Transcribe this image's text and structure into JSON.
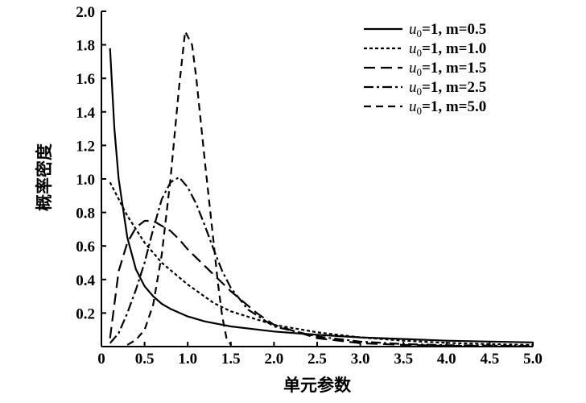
{
  "chart_data": {
    "type": "line",
    "xlabel": "单元参数",
    "ylabel": "概率密度",
    "xlim": [
      0,
      5.0
    ],
    "ylim": [
      0,
      2.0
    ],
    "x_ticks": [
      "0",
      "0.5",
      "1.0",
      "1.5",
      "2.0",
      "2.5",
      "3.0",
      "3.5",
      "4.0",
      "4.5",
      "5.0"
    ],
    "y_ticks": [
      "0.2",
      "0.4",
      "0.6",
      "0.8",
      "1.0",
      "1.2",
      "1.4",
      "1.6",
      "1.8",
      "2.0"
    ],
    "grid": false,
    "legend_position": "top-right",
    "series": [
      {
        "name_var": "u",
        "name_sub": "0",
        "name_rest": "=1, m=0.5",
        "dash": "solid",
        "points": [
          [
            0.1,
            1.78
          ],
          [
            0.15,
            1.3
          ],
          [
            0.2,
            1.0
          ],
          [
            0.3,
            0.65
          ],
          [
            0.4,
            0.46
          ],
          [
            0.5,
            0.36
          ],
          [
            0.6,
            0.3
          ],
          [
            0.7,
            0.255
          ],
          [
            0.8,
            0.225
          ],
          [
            1.0,
            0.18
          ],
          [
            1.2,
            0.15
          ],
          [
            1.5,
            0.12
          ],
          [
            2.0,
            0.09
          ],
          [
            2.5,
            0.07
          ],
          [
            3.0,
            0.055
          ],
          [
            3.5,
            0.045
          ],
          [
            4.0,
            0.035
          ],
          [
            4.5,
            0.03
          ],
          [
            5.0,
            0.025
          ]
        ]
      },
      {
        "name_var": "u",
        "name_sub": "0",
        "name_rest": "=1, m=1.0",
        "dash": "short-dash",
        "points": [
          [
            0.1,
            0.98
          ],
          [
            0.2,
            0.88
          ],
          [
            0.3,
            0.78
          ],
          [
            0.5,
            0.62
          ],
          [
            0.7,
            0.5
          ],
          [
            1.0,
            0.37
          ],
          [
            1.3,
            0.26
          ],
          [
            1.5,
            0.21
          ],
          [
            2.0,
            0.13
          ],
          [
            2.5,
            0.085
          ],
          [
            3.0,
            0.055
          ],
          [
            3.5,
            0.035
          ],
          [
            4.0,
            0.022
          ],
          [
            4.5,
            0.015
          ],
          [
            5.0,
            0.01
          ]
        ]
      },
      {
        "name_var": "u",
        "name_sub": "0",
        "name_rest": "=1, m=1.5",
        "dash": "long-dash",
        "points": [
          [
            0.1,
            0.05
          ],
          [
            0.2,
            0.45
          ],
          [
            0.3,
            0.62
          ],
          [
            0.4,
            0.71
          ],
          [
            0.5,
            0.75
          ],
          [
            0.6,
            0.75
          ],
          [
            0.7,
            0.72
          ],
          [
            0.8,
            0.69
          ],
          [
            0.9,
            0.64
          ],
          [
            1.0,
            0.58
          ],
          [
            1.2,
            0.48
          ],
          [
            1.5,
            0.33
          ],
          [
            1.8,
            0.2
          ],
          [
            2.0,
            0.13
          ],
          [
            2.5,
            0.05
          ],
          [
            3.0,
            0.02
          ],
          [
            3.5,
            0.01
          ],
          [
            4.0,
            0.005
          ],
          [
            5.0,
            0.002
          ]
        ]
      },
      {
        "name_var": "u",
        "name_sub": "0",
        "name_rest": "=1, m=2.5",
        "dash": "dash-dot",
        "points": [
          [
            0.1,
            0.02
          ],
          [
            0.2,
            0.08
          ],
          [
            0.3,
            0.2
          ],
          [
            0.4,
            0.34
          ],
          [
            0.5,
            0.5
          ],
          [
            0.6,
            0.7
          ],
          [
            0.7,
            0.88
          ],
          [
            0.8,
            0.98
          ],
          [
            0.9,
            1.01
          ],
          [
            1.0,
            0.95
          ],
          [
            1.1,
            0.85
          ],
          [
            1.2,
            0.72
          ],
          [
            1.3,
            0.58
          ],
          [
            1.4,
            0.45
          ],
          [
            1.5,
            0.35
          ],
          [
            1.7,
            0.22
          ],
          [
            2.0,
            0.12
          ],
          [
            2.5,
            0.06
          ],
          [
            3.0,
            0.03
          ],
          [
            3.5,
            0.015
          ],
          [
            4.0,
            0.008
          ],
          [
            5.0,
            0.003
          ]
        ]
      },
      {
        "name_var": "u",
        "name_sub": "0",
        "name_rest": "=1, m=5.0",
        "dash": "medium-dash",
        "points": [
          [
            0.3,
            0.01
          ],
          [
            0.4,
            0.04
          ],
          [
            0.5,
            0.1
          ],
          [
            0.6,
            0.25
          ],
          [
            0.7,
            0.55
          ],
          [
            0.8,
            1.0
          ],
          [
            0.9,
            1.55
          ],
          [
            0.97,
            1.88
          ],
          [
            1.05,
            1.8
          ],
          [
            1.1,
            1.6
          ],
          [
            1.2,
            1.1
          ],
          [
            1.3,
            0.62
          ],
          [
            1.35,
            0.38
          ],
          [
            1.4,
            0.18
          ],
          [
            1.45,
            0.05
          ],
          [
            1.5,
            0.01
          ]
        ]
      }
    ]
  }
}
